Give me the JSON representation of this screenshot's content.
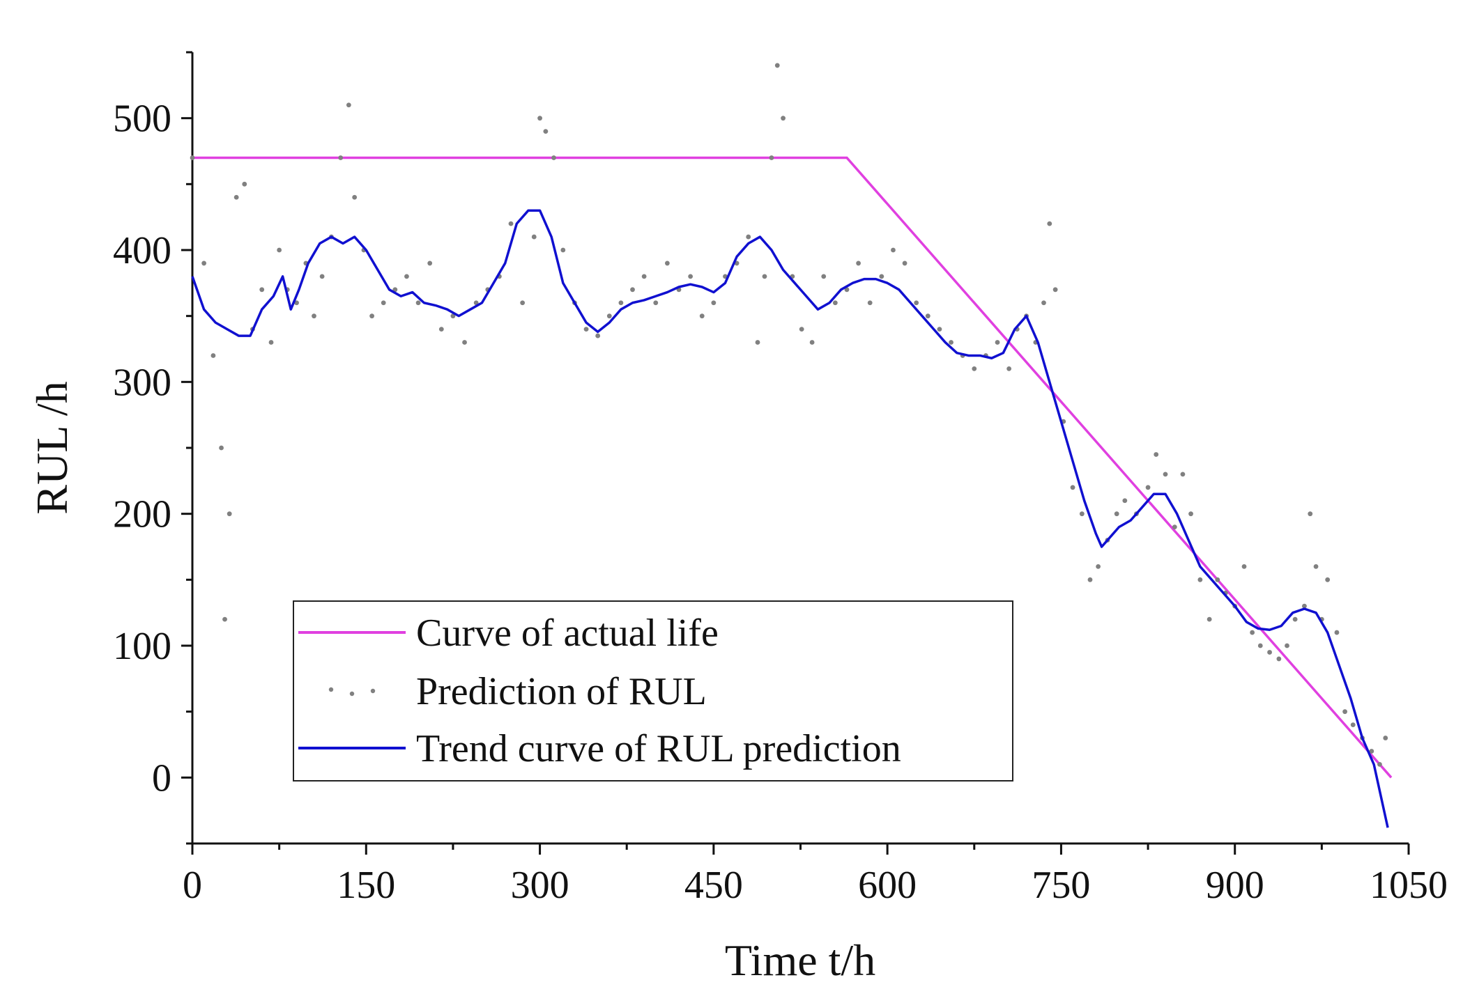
{
  "chart_data": {
    "type": "line",
    "title": "",
    "xlabel": "Time t/h",
    "ylabel": "RUL /h",
    "xlim": [
      0,
      1050
    ],
    "ylim": [
      -50,
      550
    ],
    "xticks": [
      0,
      150,
      300,
      450,
      600,
      750,
      900,
      1050
    ],
    "yticks": [
      0,
      100,
      200,
      300,
      400,
      500
    ],
    "grid": false,
    "legend_position": "bottom-center",
    "colors": {
      "actual": "#e040e0",
      "prediction": "#808080",
      "trend": "#1010d0"
    },
    "series": [
      {
        "name": "Curve of actual life",
        "kind": "line",
        "x": [
          0,
          565,
          1035
        ],
        "y": [
          470,
          470,
          0
        ]
      },
      {
        "name": "Prediction of RUL",
        "kind": "scatter",
        "x": [
          0,
          10,
          18,
          25,
          28,
          32,
          38,
          45,
          52,
          60,
          68,
          75,
          82,
          90,
          98,
          105,
          112,
          120,
          128,
          135,
          140,
          148,
          155,
          165,
          175,
          185,
          195,
          205,
          215,
          225,
          235,
          245,
          255,
          265,
          275,
          285,
          295,
          300,
          305,
          312,
          320,
          330,
          340,
          350,
          360,
          370,
          380,
          390,
          400,
          410,
          420,
          430,
          440,
          450,
          460,
          470,
          480,
          488,
          494,
          500,
          505,
          510,
          518,
          526,
          535,
          545,
          555,
          565,
          575,
          585,
          595,
          605,
          615,
          625,
          635,
          645,
          655,
          665,
          675,
          685,
          695,
          705,
          712,
          720,
          728,
          735,
          740,
          745,
          752,
          760,
          768,
          775,
          782,
          790,
          798,
          805,
          815,
          825,
          832,
          840,
          848,
          855,
          862,
          870,
          878,
          885,
          892,
          900,
          908,
          915,
          922,
          930,
          938,
          945,
          952,
          960,
          965,
          970,
          975,
          980,
          988,
          995,
          1002,
          1010,
          1018,
          1025,
          1030
        ],
        "y": [
          470,
          390,
          320,
          250,
          120,
          200,
          440,
          450,
          340,
          370,
          330,
          400,
          370,
          360,
          390,
          350,
          380,
          410,
          470,
          510,
          440,
          400,
          350,
          360,
          370,
          380,
          360,
          390,
          340,
          350,
          330,
          360,
          370,
          380,
          420,
          360,
          410,
          500,
          490,
          470,
          400,
          360,
          340,
          335,
          350,
          360,
          370,
          380,
          360,
          390,
          370,
          380,
          350,
          360,
          380,
          390,
          410,
          330,
          380,
          470,
          540,
          500,
          380,
          340,
          330,
          380,
          360,
          370,
          390,
          360,
          380,
          400,
          390,
          360,
          350,
          340,
          330,
          320,
          310,
          320,
          330,
          310,
          340,
          350,
          330,
          360,
          420,
          370,
          270,
          220,
          200,
          150,
          160,
          180,
          200,
          210,
          200,
          220,
          245,
          230,
          190,
          230,
          200,
          150,
          120,
          150,
          140,
          130,
          160,
          110,
          100,
          95,
          90,
          100,
          120,
          130,
          200,
          160,
          120,
          150,
          110,
          50,
          40,
          30,
          20,
          10,
          30
        ]
      },
      {
        "name": "Trend curve of RUL prediction",
        "kind": "line",
        "x": [
          0,
          10,
          20,
          30,
          40,
          50,
          60,
          70,
          78,
          85,
          92,
          100,
          110,
          120,
          130,
          140,
          150,
          160,
          170,
          180,
          190,
          200,
          210,
          220,
          230,
          240,
          250,
          260,
          270,
          280,
          290,
          300,
          310,
          320,
          330,
          340,
          350,
          360,
          370,
          380,
          390,
          400,
          410,
          420,
          430,
          440,
          450,
          460,
          470,
          480,
          490,
          500,
          510,
          520,
          530,
          540,
          550,
          560,
          570,
          580,
          590,
          600,
          610,
          620,
          630,
          640,
          650,
          660,
          670,
          680,
          690,
          700,
          710,
          720,
          730,
          740,
          750,
          760,
          770,
          780,
          785,
          790,
          800,
          810,
          820,
          830,
          840,
          850,
          860,
          870,
          880,
          890,
          900,
          910,
          920,
          930,
          940,
          950,
          960,
          970,
          980,
          990,
          1000,
          1010,
          1020,
          1032
        ],
        "y": [
          380,
          355,
          345,
          340,
          335,
          335,
          355,
          365,
          380,
          355,
          370,
          390,
          405,
          410,
          405,
          410,
          400,
          385,
          370,
          365,
          368,
          360,
          358,
          355,
          350,
          355,
          360,
          375,
          390,
          420,
          430,
          430,
          410,
          375,
          360,
          345,
          338,
          345,
          355,
          360,
          362,
          365,
          368,
          372,
          374,
          372,
          368,
          375,
          395,
          405,
          410,
          400,
          385,
          375,
          365,
          355,
          360,
          370,
          375,
          378,
          378,
          375,
          370,
          360,
          350,
          340,
          330,
          322,
          320,
          320,
          318,
          322,
          340,
          350,
          330,
          300,
          270,
          240,
          210,
          185,
          175,
          180,
          190,
          195,
          205,
          215,
          215,
          200,
          180,
          160,
          150,
          140,
          130,
          118,
          113,
          112,
          115,
          125,
          128,
          125,
          110,
          85,
          60,
          30,
          10,
          -38
        ]
      }
    ]
  }
}
